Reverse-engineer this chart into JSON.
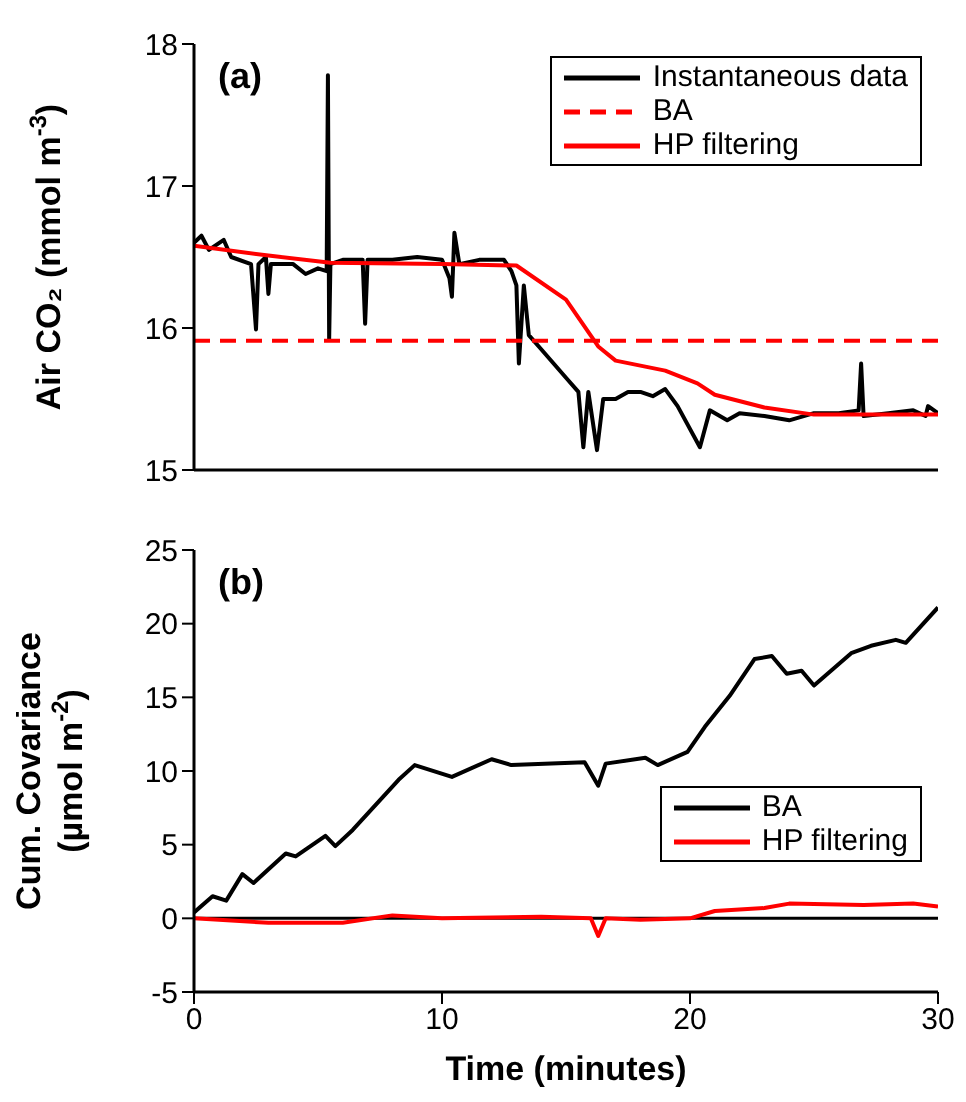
{
  "chart_data": [
    {
      "type": "line",
      "ylabel": "Air CO₂ (mmol m$^{-3}$)",
      "annotations": [
        "(a)"
      ],
      "xlim": [
        0,
        30
      ],
      "xticks": [
        0,
        10,
        20,
        30
      ],
      "ylim": [
        15,
        18
      ],
      "yticks": [
        15,
        16,
        17,
        18
      ],
      "tick_labels": "y",
      "legend": "top right",
      "grid": false,
      "marker": "none",
      "series": [
        {
          "name": "Instantaneous data",
          "color": "#000000",
          "line_style": "solid",
          "x": [
            0,
            0.3,
            0.6,
            1.2,
            1.5,
            2.3,
            2.5,
            2.6,
            2.9,
            3.0,
            3.1,
            4,
            4.5,
            5,
            5.35,
            5.4,
            5.45,
            5.5,
            6,
            6.8,
            6.9,
            7.0,
            8,
            9,
            10,
            10.3,
            10.4,
            10.5,
            10.7,
            11.5,
            12.5,
            12.8,
            13.0,
            13.1,
            13.3,
            13.5,
            14,
            14.5,
            15,
            15.5,
            15.7,
            15.9,
            16.25,
            16.5,
            17,
            17.5,
            18,
            18.5,
            19,
            19.5,
            20.4,
            20.8,
            21.5,
            22,
            23,
            24,
            25,
            26,
            26.8,
            26.9,
            27,
            28,
            29,
            29.5,
            29.6,
            30
          ],
          "values": [
            16.6,
            16.65,
            16.55,
            16.62,
            16.5,
            16.45,
            15.99,
            16.45,
            16.5,
            16.24,
            16.45,
            16.45,
            16.38,
            16.42,
            16.4,
            17.78,
            15.92,
            16.45,
            16.48,
            16.48,
            16.03,
            16.48,
            16.48,
            16.5,
            16.48,
            16.35,
            16.22,
            16.67,
            16.45,
            16.48,
            16.48,
            16.4,
            16.3,
            15.75,
            16.3,
            15.95,
            15.85,
            15.75,
            15.65,
            15.55,
            15.16,
            15.55,
            15.14,
            15.5,
            15.5,
            15.55,
            15.55,
            15.52,
            15.57,
            15.45,
            15.16,
            15.42,
            15.35,
            15.4,
            15.38,
            15.35,
            15.4,
            15.4,
            15.42,
            15.75,
            15.38,
            15.4,
            15.42,
            15.38,
            15.45,
            15.4
          ]
        },
        {
          "name": "BA",
          "color": "#ff0000",
          "line_style": "dashed",
          "x": [
            0,
            30
          ],
          "values": [
            15.91,
            15.91
          ]
        },
        {
          "name": "HP filtering",
          "color": "#ff0000",
          "line_style": "solid",
          "x": [
            0,
            3,
            5.5,
            10,
            13,
            15,
            16.3,
            17,
            19,
            20.3,
            21,
            23,
            25,
            30
          ],
          "values": [
            16.58,
            16.51,
            16.46,
            16.45,
            16.44,
            16.2,
            15.87,
            15.77,
            15.7,
            15.61,
            15.53,
            15.44,
            15.39,
            15.39
          ]
        }
      ]
    },
    {
      "type": "line",
      "xlabel": "Time (minutes)",
      "ylabel": "Cum. Covariance (µmol m$^{-2}$)",
      "annotations": [
        "(b)"
      ],
      "xlim": [
        0,
        30
      ],
      "xticks": [
        0,
        10,
        20,
        30
      ],
      "ylim": [
        -5,
        25
      ],
      "yticks": [
        -5,
        0,
        5,
        10,
        15,
        20,
        25
      ],
      "legend": "right",
      "grid": false,
      "marker": "none",
      "ref_lines": [
        {
          "axis": "y",
          "value": 0,
          "color": "#000000"
        }
      ],
      "series": [
        {
          "name": "BA",
          "color": "#000000",
          "line_style": "solid",
          "x": [
            0,
            0.75,
            1.3,
            1.95,
            2.4,
            3.7,
            4.1,
            5.3,
            5.7,
            6.4,
            8.25,
            8.9,
            10.4,
            12.0,
            12.8,
            15.75,
            16.3,
            16.6,
            18.2,
            18.7,
            19.9,
            20.6,
            21.6,
            22.6,
            23.3,
            23.9,
            24.5,
            25.0,
            26.5,
            27.3,
            28.3,
            28.7,
            30
          ],
          "values": [
            0.4,
            1.5,
            1.2,
            3.0,
            2.4,
            4.4,
            4.2,
            5.6,
            4.9,
            6.0,
            9.4,
            10.4,
            9.6,
            10.8,
            10.4,
            10.6,
            9.0,
            10.5,
            10.9,
            10.4,
            11.3,
            13.0,
            15.1,
            17.6,
            17.8,
            16.6,
            16.8,
            15.8,
            18.0,
            18.5,
            18.9,
            18.7,
            21.1
          ]
        },
        {
          "name": "HP filtering",
          "color": "#ff0000",
          "line_style": "solid",
          "x": [
            0,
            3,
            6,
            8,
            10,
            14,
            16,
            16.3,
            16.6,
            18,
            20,
            21,
            23,
            24,
            27,
            29,
            30
          ],
          "values": [
            0,
            -0.3,
            -0.3,
            0.2,
            0,
            0.1,
            0,
            -1.2,
            0,
            -0.1,
            0,
            0.5,
            0.7,
            1.0,
            0.9,
            1.0,
            0.8
          ]
        }
      ]
    }
  ]
}
